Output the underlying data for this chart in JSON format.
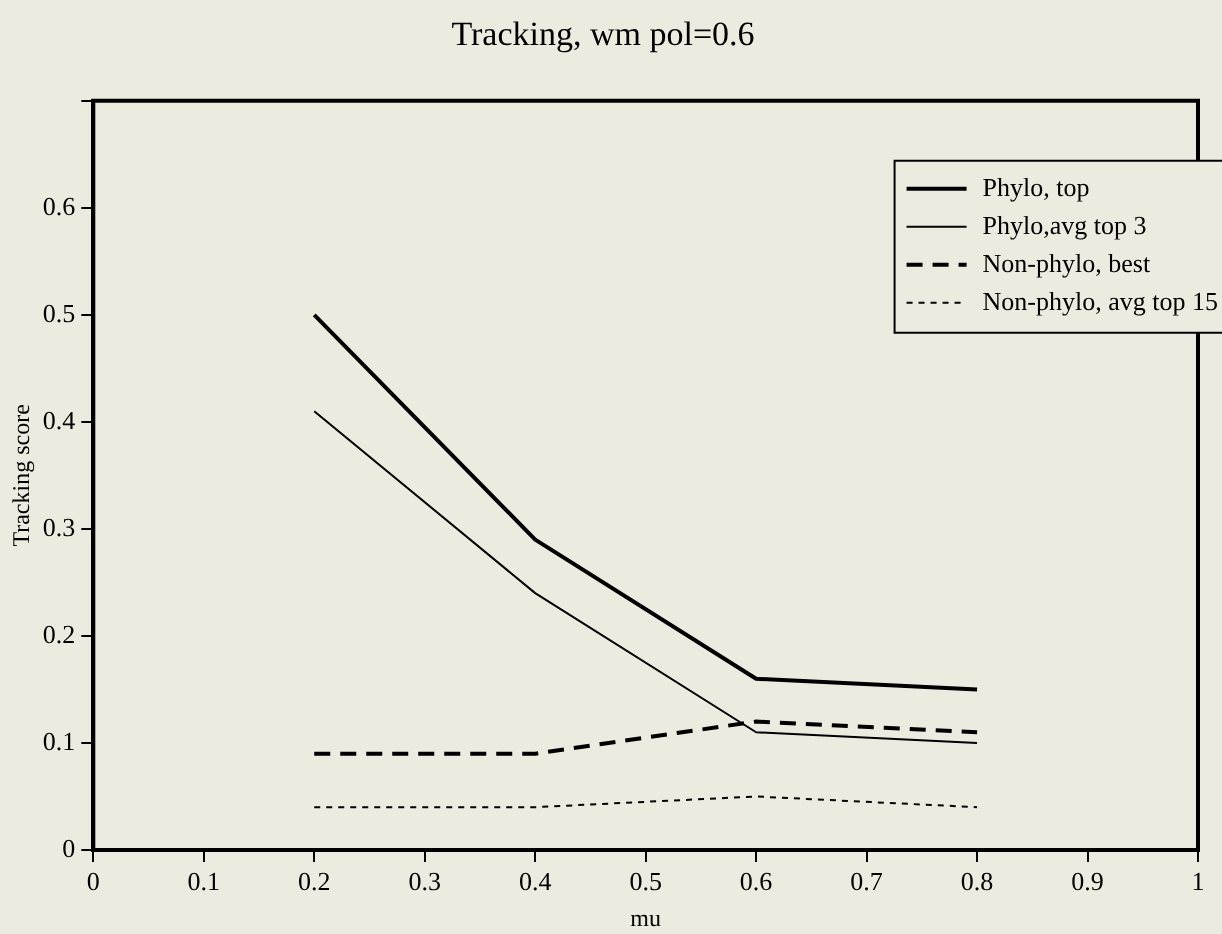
{
  "chart_data": {
    "type": "line",
    "title": "Tracking, wm pol=0.6",
    "xlabel": "mu",
    "ylabel": "Tracking score",
    "x": [
      0.2,
      0.4,
      0.6,
      0.8
    ],
    "series": [
      {
        "name": "Phylo, top",
        "color": "#000000",
        "line_style": "solid",
        "values": [
          0.5,
          0.29,
          0.16,
          0.15
        ]
      },
      {
        "name": "Phylo,avg top 3",
        "color": "#000000",
        "line_style": "solid",
        "values": [
          0.41,
          0.24,
          0.11,
          0.1
        ]
      },
      {
        "name": "Non-phylo, best",
        "color": "#000000",
        "line_style": "dashed",
        "values": [
          0.09,
          0.09,
          0.12,
          0.11
        ]
      },
      {
        "name": "Non-phylo, avg top 15",
        "color": "#000000",
        "line_style": "dotted",
        "values": [
          0.04,
          0.04,
          0.05,
          0.04
        ]
      }
    ],
    "xlim": [
      0,
      1
    ],
    "xticks": [
      0,
      0.1,
      0.2,
      0.3,
      0.4,
      0.5,
      0.6,
      0.7,
      0.8,
      0.9,
      1
    ],
    "ylim": [
      0,
      0.7
    ],
    "yticks": [
      0,
      0.1,
      0.2,
      0.3,
      0.4,
      0.5,
      0.6,
      {
        "value": 0.7,
        "label": null
      }
    ],
    "grid": false,
    "legend": "top right",
    "marker": "none"
  }
}
